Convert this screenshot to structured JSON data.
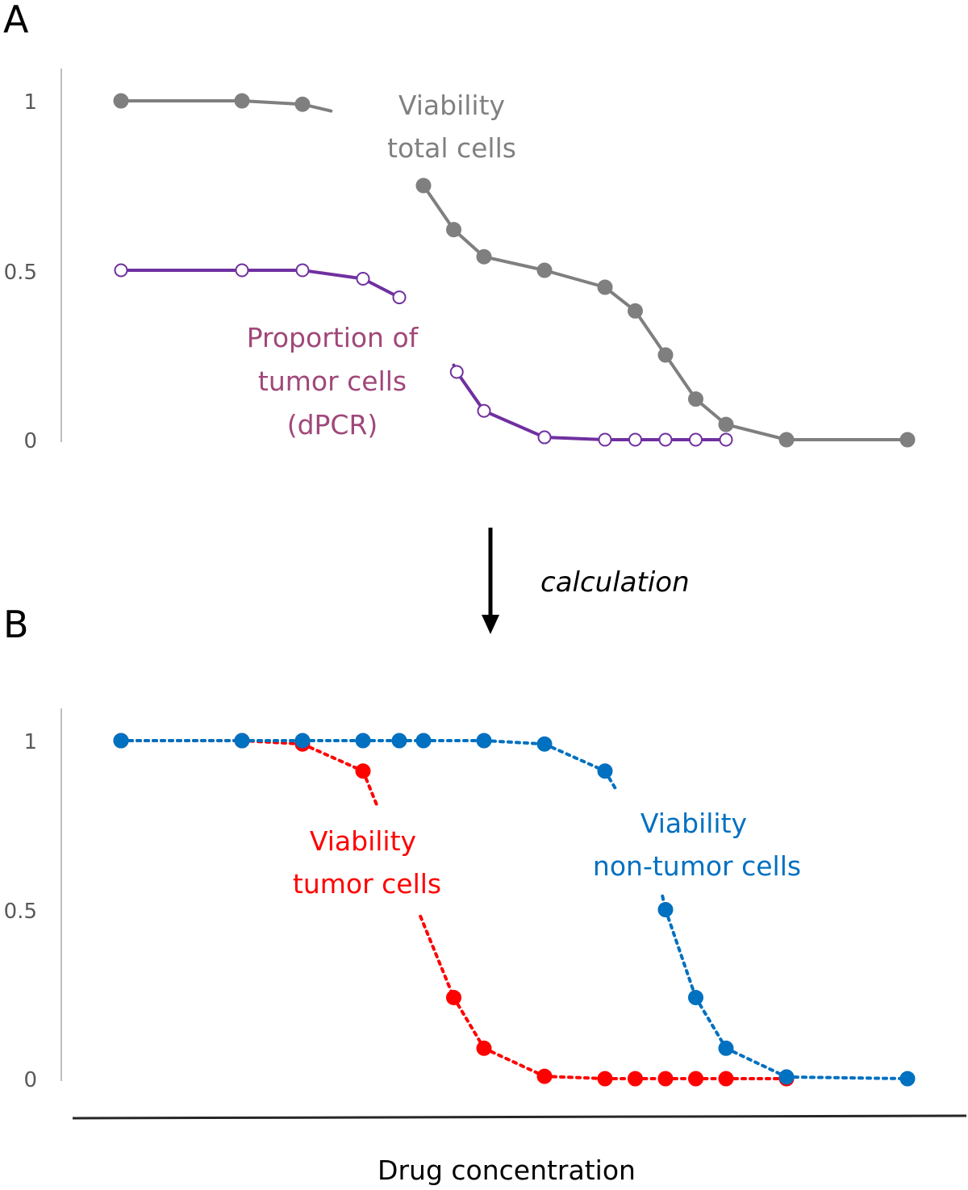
{
  "figure": {
    "panel_a_letter": "A",
    "panel_b_letter": "B",
    "arrow_label": "calculation",
    "xlabel": "Drug concentration"
  },
  "chart_data": [
    {
      "type": "line",
      "panel": "A",
      "title": "",
      "xlabel": "",
      "ylabel": "",
      "ylim": [
        0,
        1
      ],
      "yticks": [
        "0",
        "0.5",
        "1"
      ],
      "grid": false,
      "x_index": [
        0,
        2,
        3,
        4,
        4.6,
        5.0,
        5.5,
        6,
        7,
        8,
        8.5,
        9,
        9.5,
        10,
        11,
        13
      ],
      "series": [
        {
          "name": "Viability total cells",
          "label_lines": [
            "Viability",
            "total cells"
          ],
          "color": "#7f7f7f",
          "marker": "filled-circle",
          "line_style": "solid",
          "points": [
            {
              "x": 0,
              "y": 1.0
            },
            {
              "x": 2,
              "y": 1.0
            },
            {
              "x": 3,
              "y": 0.99
            },
            {
              "x": 5.0,
              "y": 0.75
            },
            {
              "x": 5.5,
              "y": 0.62
            },
            {
              "x": 6,
              "y": 0.54
            },
            {
              "x": 7,
              "y": 0.5
            },
            {
              "x": 8,
              "y": 0.45
            },
            {
              "x": 8.5,
              "y": 0.38
            },
            {
              "x": 9,
              "y": 0.25
            },
            {
              "x": 9.5,
              "y": 0.12
            },
            {
              "x": 10,
              "y": 0.045
            },
            {
              "x": 11,
              "y": 0.0
            },
            {
              "x": 13,
              "y": 0.0
            }
          ],
          "hidden_segment_after": 3
        },
        {
          "name": "Proportion of tumor cells (dPCR)",
          "label_lines": [
            "Proportion of",
            "tumor cells",
            "(dPCR)"
          ],
          "color": "#7030a0",
          "label_color": "#a0487a",
          "marker": "open-circle",
          "line_style": "solid",
          "points": [
            {
              "x": 0,
              "y": 0.5
            },
            {
              "x": 2,
              "y": 0.5
            },
            {
              "x": 3,
              "y": 0.5
            },
            {
              "x": 4,
              "y": 0.475
            },
            {
              "x": 4.6,
              "y": 0.42
            },
            {
              "x": 5.55,
              "y": 0.2
            },
            {
              "x": 6,
              "y": 0.085
            },
            {
              "x": 7,
              "y": 0.007
            },
            {
              "x": 8,
              "y": 0.0
            },
            {
              "x": 8.5,
              "y": 0.0
            },
            {
              "x": 9,
              "y": 0.0
            },
            {
              "x": 9.5,
              "y": 0.0
            },
            {
              "x": 10,
              "y": 0.0
            }
          ],
          "hidden_segment_after": 5
        }
      ]
    },
    {
      "type": "line",
      "panel": "B",
      "title": "",
      "xlabel": "Drug concentration",
      "ylabel": "",
      "ylim": [
        0,
        1
      ],
      "yticks": [
        "0",
        "0.5",
        "1"
      ],
      "grid": false,
      "series": [
        {
          "name": "Viability tumor cells",
          "label_lines": [
            "Viability",
            "tumor cells"
          ],
          "color": "#ff0000",
          "marker": "filled-circle",
          "line_style": "dotted",
          "points": [
            {
              "x": 0,
              "y": 1.0
            },
            {
              "x": 2,
              "y": 1.0
            },
            {
              "x": 3,
              "y": 0.99
            },
            {
              "x": 4,
              "y": 0.91
            },
            {
              "x": 5.5,
              "y": 0.24
            },
            {
              "x": 6,
              "y": 0.09
            },
            {
              "x": 7,
              "y": 0.007
            },
            {
              "x": 8,
              "y": 0.0
            },
            {
              "x": 8.5,
              "y": 0.0
            },
            {
              "x": 9,
              "y": 0.0
            },
            {
              "x": 9.5,
              "y": 0.0
            },
            {
              "x": 10,
              "y": 0.0
            },
            {
              "x": 11,
              "y": 0.0
            }
          ],
          "hidden_segment_after": 4,
          "segment_stub_before_x": 4.25,
          "segment_stub_before_y": 0.8,
          "segment_resume_x": 4.95,
          "segment_resume_y": 0.48
        },
        {
          "name": "Viability non-tumor cells",
          "label_lines": [
            "Viability",
            "non-tumor cells"
          ],
          "color": "#0070c0",
          "marker": "filled-circle",
          "line_style": "dotted",
          "points": [
            {
              "x": 0,
              "y": 1.0
            },
            {
              "x": 2,
              "y": 1.0
            },
            {
              "x": 3,
              "y": 1.0
            },
            {
              "x": 4,
              "y": 1.0
            },
            {
              "x": 4.6,
              "y": 1.0
            },
            {
              "x": 5.0,
              "y": 1.0
            },
            {
              "x": 6,
              "y": 1.0
            },
            {
              "x": 7,
              "y": 0.99
            },
            {
              "x": 8,
              "y": 0.91
            },
            {
              "x": 9,
              "y": 0.5
            },
            {
              "x": 9.5,
              "y": 0.24
            },
            {
              "x": 10,
              "y": 0.09
            },
            {
              "x": 11,
              "y": 0.005
            },
            {
              "x": 13,
              "y": 0.0
            }
          ],
          "hidden_segment_after": 9,
          "segment_stub_before_x": 8.2,
          "segment_stub_before_y": 0.85,
          "segment_resume_x": 8.95,
          "segment_resume_y": 0.54
        }
      ]
    }
  ]
}
